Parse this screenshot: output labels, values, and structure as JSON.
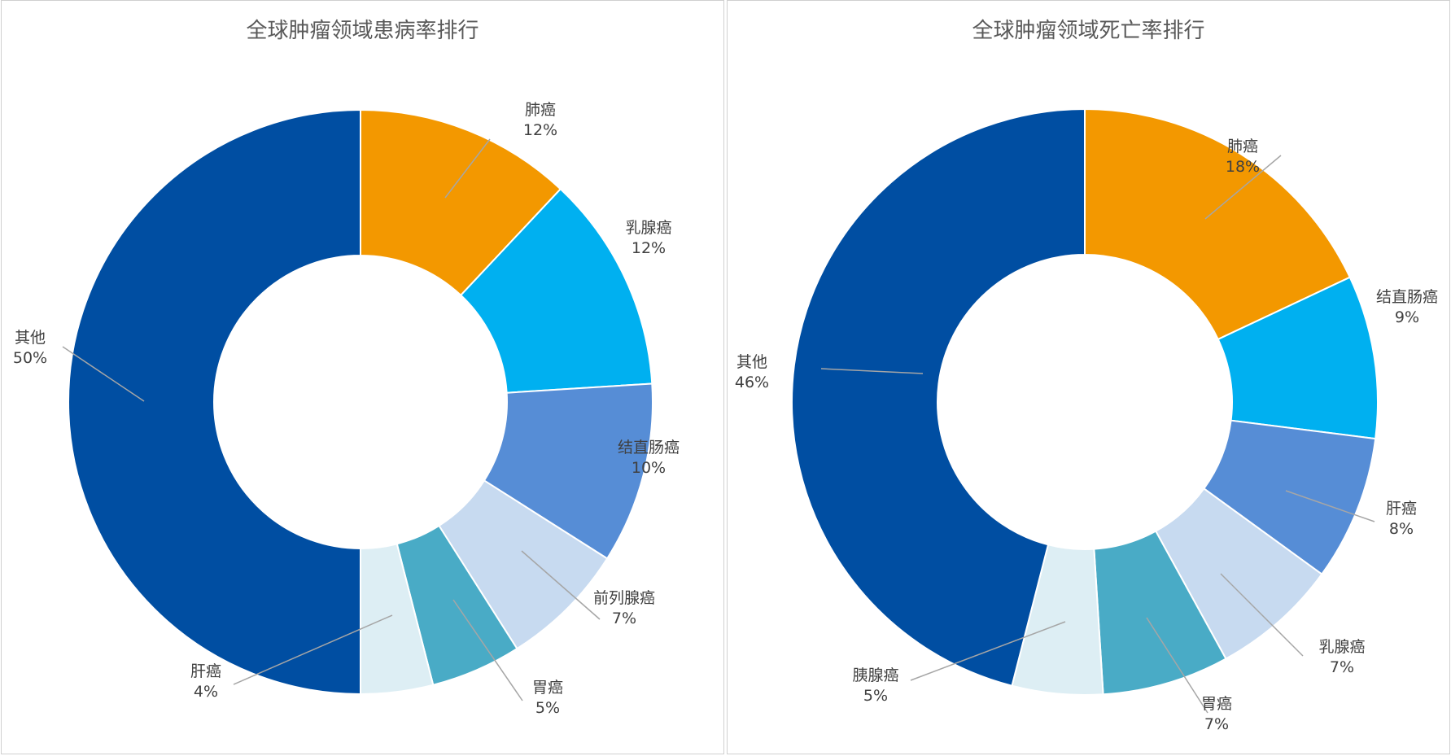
{
  "chart_data": [
    {
      "type": "pie",
      "variant": "donut",
      "title": "全球肿瘤领域患病率排行",
      "categories": [
        "肺癌",
        "乳腺癌",
        "结直肠癌",
        "前列腺癌",
        "胃癌",
        "肝癌",
        "其他"
      ],
      "values": [
        12,
        12,
        10,
        7,
        5,
        4,
        50
      ],
      "value_labels": [
        "12%",
        "12%",
        "10%",
        "7%",
        "5%",
        "4%",
        "50%"
      ],
      "colors": [
        "#F39800",
        "#00B0F0",
        "#568DD6",
        "#C7DAF0",
        "#49ABC6",
        "#DDEEF4",
        "#004EA2"
      ],
      "legend": "none"
    },
    {
      "type": "pie",
      "variant": "donut",
      "title": "全球肿瘤领域死亡率排行",
      "categories": [
        "肺癌",
        "结直肠癌",
        "肝癌",
        "乳腺癌",
        "胃癌",
        "胰腺癌",
        "其他"
      ],
      "values": [
        18,
        9,
        8,
        7,
        7,
        5,
        46
      ],
      "value_labels": [
        "18%",
        "9%",
        "8%",
        "7%",
        "7%",
        "5%",
        "46%"
      ],
      "colors": [
        "#F39800",
        "#00B0F0",
        "#568DD6",
        "#C7DAF0",
        "#49ABC6",
        "#DDEEF4",
        "#004EA2"
      ],
      "legend": "none"
    }
  ]
}
